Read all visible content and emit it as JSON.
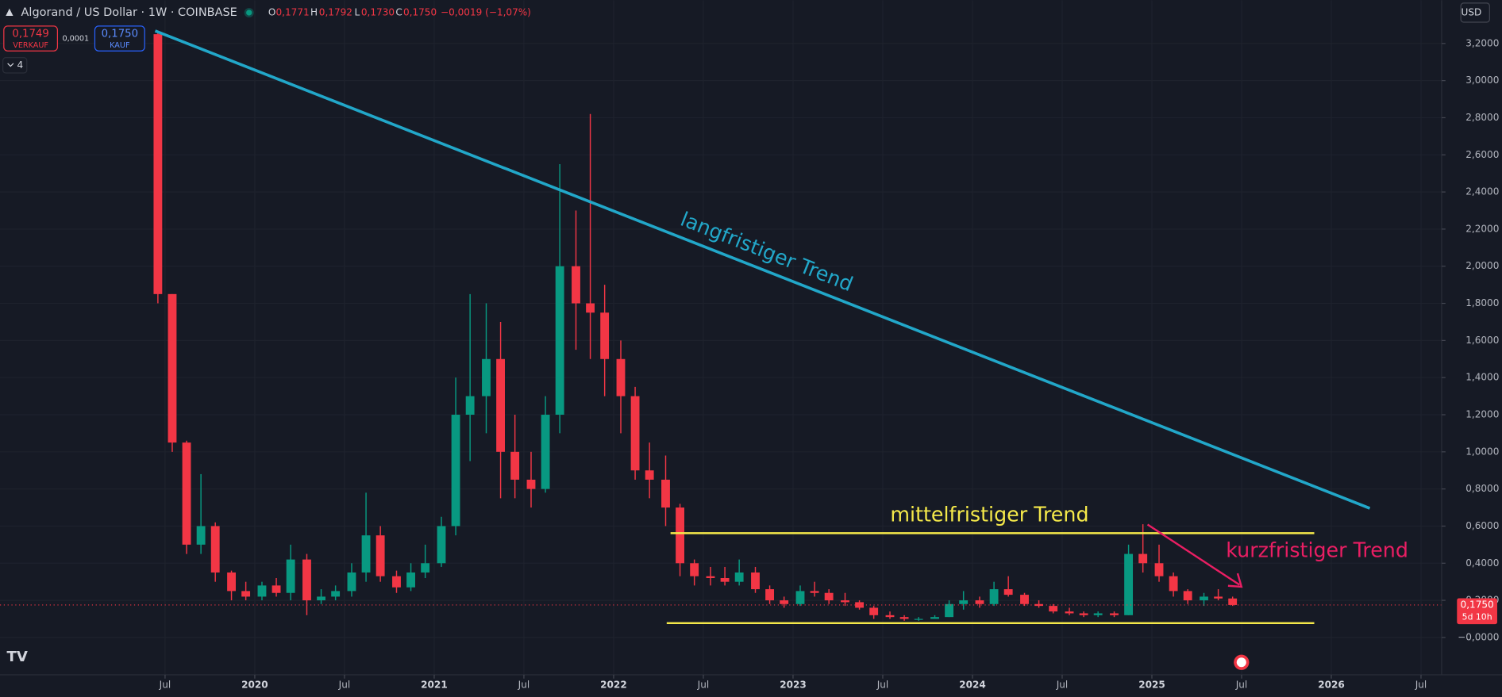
{
  "header": {
    "symbol": "Algorand / US Dollar · 1W · COINBASE",
    "ohlc": [
      {
        "key": "O",
        "value": "0,1771"
      },
      {
        "key": "H",
        "value": "0,1792"
      },
      {
        "key": "L",
        "value": "0,1730"
      },
      {
        "key": "C",
        "value": "0,1750"
      }
    ],
    "change": "−0,0019 (−1,07%)"
  },
  "trade": {
    "sell_price": "0,1749",
    "sell_label": "VERKAUF",
    "spread": "0,0001",
    "buy_price": "0,1750",
    "buy_label": "KAUF"
  },
  "indicators_count": "4",
  "currency": "USD",
  "countdown": "5d 10h",
  "chart_data": {
    "type": "candlestick",
    "up_color": "#089981",
    "down_color": "#f23645",
    "x": [
      2019.46,
      2019.54,
      2019.62,
      2019.7,
      2019.78,
      2019.87,
      2019.95,
      2020.04,
      2020.12,
      2020.2,
      2020.29,
      2020.37,
      2020.45,
      2020.54,
      2020.62,
      2020.7,
      2020.79,
      2020.87,
      2020.95,
      2021.04,
      2021.12,
      2021.2,
      2021.29,
      2021.37,
      2021.45,
      2021.54,
      2021.62,
      2021.7,
      2021.79,
      2021.87,
      2021.95,
      2022.04,
      2022.12,
      2022.2,
      2022.29,
      2022.37,
      2022.45,
      2022.54,
      2022.62,
      2022.7,
      2022.79,
      2022.87,
      2022.95,
      2023.04,
      2023.12,
      2023.2,
      2023.29,
      2023.37,
      2023.45,
      2023.54,
      2023.62,
      2023.7,
      2023.79,
      2023.87,
      2023.95,
      2024.04,
      2024.12,
      2024.2,
      2024.29,
      2024.37,
      2024.45,
      2024.54,
      2024.62,
      2024.7,
      2024.79,
      2024.87,
      2024.95,
      2025.04,
      2025.12,
      2025.2,
      2025.29,
      2025.37,
      2025.45
    ],
    "open": [
      3.25,
      1.85,
      1.05,
      0.5,
      0.6,
      0.35,
      0.25,
      0.22,
      0.28,
      0.24,
      0.42,
      0.2,
      0.22,
      0.25,
      0.35,
      0.55,
      0.33,
      0.27,
      0.35,
      0.4,
      0.6,
      1.2,
      1.3,
      1.5,
      1.0,
      0.85,
      0.8,
      1.2,
      2.0,
      1.8,
      1.75,
      1.5,
      1.3,
      0.9,
      0.85,
      0.7,
      0.4,
      0.33,
      0.32,
      0.3,
      0.35,
      0.26,
      0.2,
      0.18,
      0.25,
      0.24,
      0.2,
      0.19,
      0.16,
      0.12,
      0.11,
      0.1,
      0.1,
      0.11,
      0.18,
      0.2,
      0.18,
      0.26,
      0.23,
      0.18,
      0.17,
      0.14,
      0.13,
      0.12,
      0.13,
      0.12,
      0.45,
      0.4,
      0.33,
      0.25,
      0.2,
      0.22,
      0.21
    ],
    "high": [
      3.27,
      1.85,
      1.06,
      0.88,
      0.62,
      0.36,
      0.3,
      0.3,
      0.32,
      0.5,
      0.45,
      0.26,
      0.28,
      0.4,
      0.78,
      0.6,
      0.36,
      0.4,
      0.5,
      0.65,
      1.4,
      1.85,
      1.8,
      1.7,
      1.2,
      1.0,
      1.3,
      2.55,
      2.3,
      2.82,
      1.9,
      1.6,
      1.35,
      1.05,
      0.98,
      0.72,
      0.42,
      0.38,
      0.38,
      0.42,
      0.38,
      0.28,
      0.22,
      0.28,
      0.3,
      0.26,
      0.24,
      0.2,
      0.17,
      0.14,
      0.12,
      0.11,
      0.12,
      0.2,
      0.25,
      0.22,
      0.3,
      0.33,
      0.24,
      0.2,
      0.18,
      0.16,
      0.14,
      0.14,
      0.14,
      0.5,
      0.61,
      0.5,
      0.35,
      0.26,
      0.24,
      0.26,
      0.22
    ],
    "low": [
      1.8,
      1.0,
      0.45,
      0.45,
      0.3,
      0.2,
      0.2,
      0.2,
      0.22,
      0.2,
      0.12,
      0.18,
      0.2,
      0.22,
      0.3,
      0.3,
      0.24,
      0.25,
      0.32,
      0.38,
      0.55,
      0.95,
      1.1,
      0.75,
      0.75,
      0.7,
      0.78,
      1.1,
      1.55,
      1.5,
      1.3,
      1.1,
      0.85,
      0.75,
      0.6,
      0.33,
      0.28,
      0.28,
      0.28,
      0.28,
      0.24,
      0.18,
      0.16,
      0.17,
      0.22,
      0.18,
      0.17,
      0.15,
      0.1,
      0.1,
      0.09,
      0.09,
      0.1,
      0.11,
      0.15,
      0.16,
      0.17,
      0.22,
      0.17,
      0.16,
      0.13,
      0.12,
      0.11,
      0.11,
      0.11,
      0.12,
      0.35,
      0.3,
      0.22,
      0.18,
      0.17,
      0.2,
      0.17
    ],
    "close": [
      1.85,
      1.05,
      0.5,
      0.6,
      0.35,
      0.25,
      0.22,
      0.28,
      0.24,
      0.42,
      0.2,
      0.22,
      0.25,
      0.35,
      0.55,
      0.33,
      0.27,
      0.35,
      0.4,
      0.6,
      1.2,
      1.3,
      1.5,
      1.0,
      0.85,
      0.8,
      1.2,
      2.0,
      1.8,
      1.75,
      1.5,
      1.3,
      0.9,
      0.85,
      0.7,
      0.4,
      0.33,
      0.32,
      0.3,
      0.35,
      0.26,
      0.2,
      0.18,
      0.25,
      0.24,
      0.2,
      0.19,
      0.16,
      0.12,
      0.11,
      0.1,
      0.1,
      0.11,
      0.18,
      0.2,
      0.18,
      0.26,
      0.23,
      0.18,
      0.17,
      0.14,
      0.13,
      0.12,
      0.13,
      0.12,
      0.45,
      0.4,
      0.33,
      0.25,
      0.2,
      0.22,
      0.21,
      0.175
    ],
    "last_price": {
      "value": 0.175,
      "label": "0,1750"
    },
    "xlim": [
      2018.58,
      2026.615
    ],
    "xticks": [
      {
        "value": 2019.5,
        "label": "Jul"
      },
      2020,
      {
        "value": 2020.5,
        "label": "Jul"
      },
      2021,
      {
        "value": 2021.5,
        "label": "Jul"
      },
      2022,
      {
        "value": 2022.5,
        "label": "Jul"
      },
      2023,
      {
        "value": 2023.5,
        "label": "Jul"
      },
      2024,
      {
        "value": 2024.5,
        "label": "Jul"
      },
      2025,
      {
        "value": 2025.5,
        "label": "Jul"
      },
      2026,
      {
        "value": 2026.5,
        "label": "Jul"
      }
    ],
    "ylim": [
      -0.201,
      3.433
    ],
    "yticks": [
      {
        "value": 3.2,
        "label": "3,2000"
      },
      {
        "value": 3.0,
        "label": "3,0000"
      },
      {
        "value": 2.8,
        "label": "2,8000"
      },
      {
        "value": 2.6,
        "label": "2,6000"
      },
      {
        "value": 2.4,
        "label": "2,4000"
      },
      {
        "value": 2.2,
        "label": "2,2000"
      },
      {
        "value": 2.0,
        "label": "2,0000"
      },
      {
        "value": 1.8,
        "label": "1,8000"
      },
      {
        "value": 1.6,
        "label": "1,6000"
      },
      {
        "value": 1.4,
        "label": "1,4000"
      },
      {
        "value": 1.2,
        "label": "1,2000"
      },
      {
        "value": 1.0,
        "label": "1,0000"
      },
      {
        "value": 0.8,
        "label": "0,8000"
      },
      {
        "value": 0.6,
        "label": "0,6000"
      },
      {
        "value": 0.4,
        "label": "0,4000"
      },
      {
        "value": 0.2,
        "label": "0,2000"
      },
      {
        "value": 0,
        "label": "−0,0000"
      }
    ],
    "grid": true,
    "annotations": [
      {
        "text": "langfristiger Trend",
        "color": "#22a7c9"
      },
      {
        "text": "mittelfristiger Trend",
        "color": "#f5e94a"
      },
      {
        "text": "kurzfristiger Trend",
        "color": "#e91e63"
      }
    ]
  }
}
